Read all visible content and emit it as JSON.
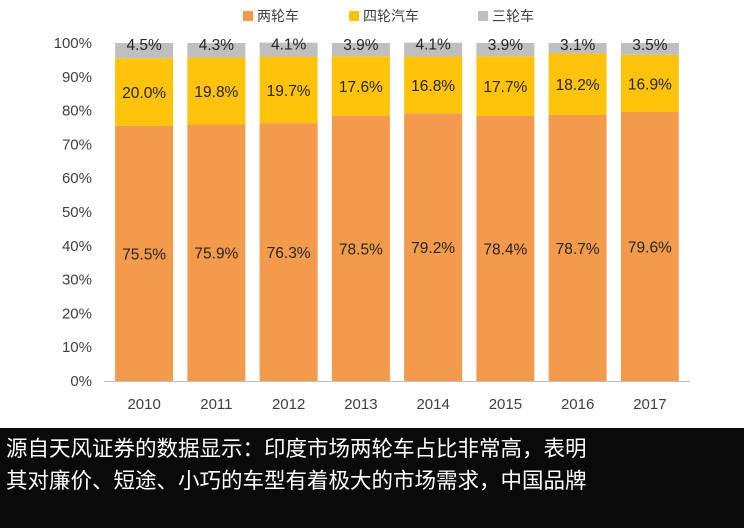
{
  "chart_data": {
    "type": "bar",
    "stacked": true,
    "categories": [
      "2010",
      "2011",
      "2012",
      "2013",
      "2014",
      "2015",
      "2016",
      "2017"
    ],
    "series": [
      {
        "name": "两轮车",
        "values": [
          75.5,
          75.9,
          76.3,
          78.5,
          79.2,
          78.4,
          78.7,
          79.6
        ],
        "labels": [
          "75.5%",
          "75.9%",
          "76.3%",
          "78.5%",
          "79.2%",
          "78.4%",
          "78.7%",
          "79.6%"
        ],
        "color": "#F39A4C"
      },
      {
        "name": "四轮汽车",
        "values": [
          20.0,
          19.8,
          19.7,
          17.6,
          16.8,
          17.7,
          18.2,
          16.9
        ],
        "labels": [
          "20.0%",
          "19.8%",
          "19.7%",
          "17.6%",
          "16.8%",
          "17.7%",
          "18.2%",
          "16.9%"
        ],
        "color": "#FEC30A"
      },
      {
        "name": "三轮车",
        "values": [
          4.5,
          4.3,
          4.1,
          3.9,
          4.1,
          3.9,
          3.1,
          3.5
        ],
        "labels": [
          "4.5%",
          "4.3%",
          "4.1%",
          "3.9%",
          "4.1%",
          "3.9%",
          "3.1%",
          "3.5%"
        ],
        "color": "#BFBFBF"
      }
    ],
    "ylim": [
      0,
      100
    ],
    "yticks": [
      "0%",
      "10%",
      "20%",
      "30%",
      "40%",
      "50%",
      "60%",
      "70%",
      "80%",
      "90%",
      "100%"
    ],
    "legend_position": "top-center",
    "grid": false
  },
  "caption": {
    "lines": [
      "源自天风证券的数据显示：印度市场两轮车占比非常高，表明",
      "其对廉价、短途、小巧的车型有着极大的市场需求，中国品牌"
    ]
  }
}
